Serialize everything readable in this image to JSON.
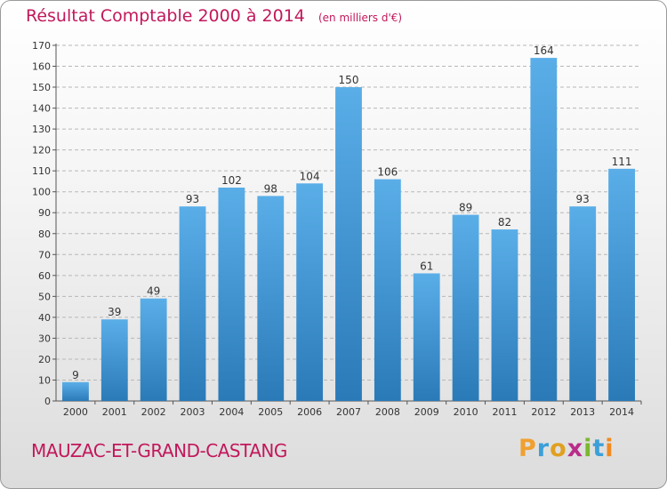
{
  "header": {
    "title": "Résultat Comptable 2000 à 2014",
    "unit": "(en milliers d'€)"
  },
  "commune": "MAUZAC-ET-GRAND-CASTANG",
  "logo": {
    "letters": [
      "P",
      "r",
      "o",
      "x",
      "i",
      "t",
      "i"
    ],
    "colors": [
      "#f0a030",
      "#3ba0d8",
      "#e0a020",
      "#b82c8a",
      "#7cb82f",
      "#3ba0d8",
      "#f08a20"
    ]
  },
  "colors": {
    "bar_top": "#5aaee8",
    "bar_bottom": "#2a7ab8",
    "title": "#c2185b"
  },
  "chart_data": {
    "type": "bar",
    "title": "Résultat Comptable 2000 à 2014",
    "subtitle": "(en milliers d'€)",
    "categories": [
      "2000",
      "2001",
      "2002",
      "2003",
      "2004",
      "2005",
      "2006",
      "2007",
      "2008",
      "2009",
      "2010",
      "2011",
      "2012",
      "2013",
      "2014"
    ],
    "values": [
      9,
      39,
      49,
      93,
      102,
      98,
      104,
      150,
      106,
      61,
      89,
      82,
      164,
      93,
      111
    ],
    "ylim": [
      0,
      170
    ],
    "yticks": [
      0,
      10,
      20,
      30,
      40,
      50,
      60,
      70,
      80,
      90,
      100,
      110,
      120,
      130,
      140,
      150,
      160,
      170
    ],
    "grid": true,
    "xlabel": "",
    "ylabel": ""
  }
}
